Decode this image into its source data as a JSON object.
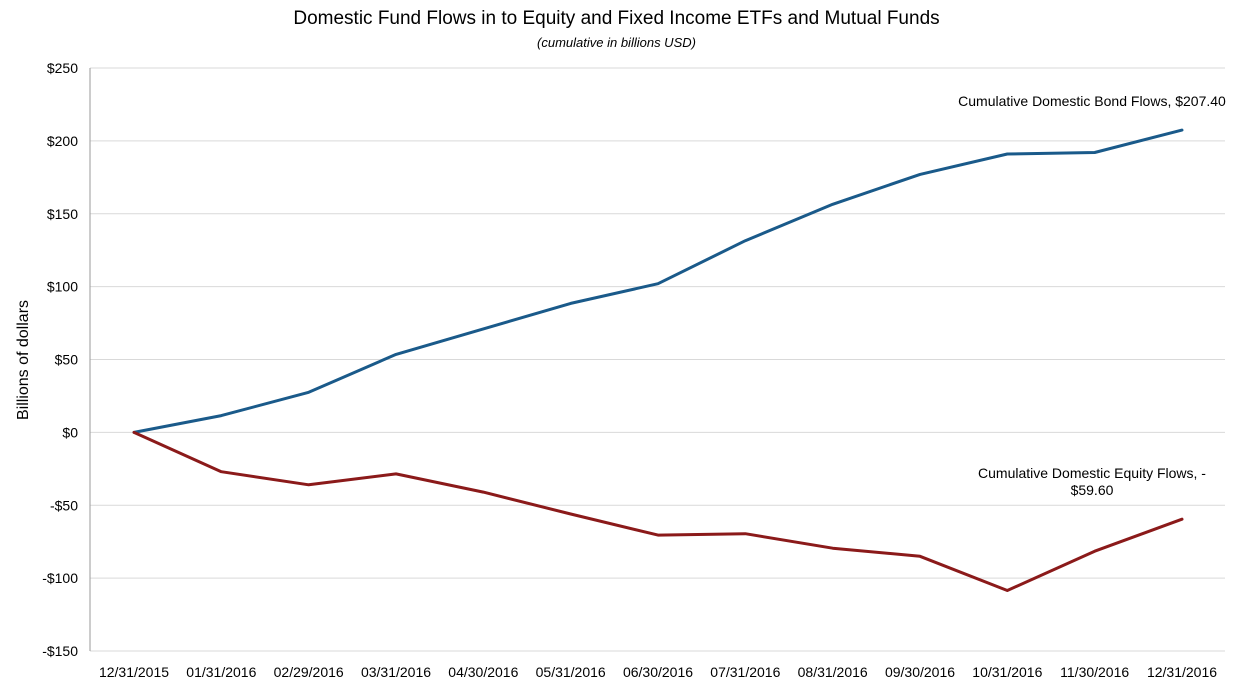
{
  "chart_data": {
    "type": "line",
    "title": "Domestic Fund Flows in to Equity and Fixed Income ETFs and Mutual Funds",
    "subtitle": "(cumulative in billions USD)",
    "xlabel": "",
    "ylabel": "Billions of dollars",
    "ylim": [
      -150,
      250
    ],
    "ytick_values": [
      -150,
      -100,
      -50,
      0,
      50,
      100,
      150,
      200,
      250
    ],
    "ytick_labels": [
      "-$150",
      "-$100",
      "-$50",
      "$0",
      "$50",
      "$100",
      "$150",
      "$200",
      "$250"
    ],
    "categories": [
      "12/31/2015",
      "01/31/2016",
      "02/29/2016",
      "03/31/2016",
      "04/30/2016",
      "05/31/2016",
      "06/30/2016",
      "07/31/2016",
      "08/31/2016",
      "09/30/2016",
      "10/31/2016",
      "11/30/2016",
      "12/31/2016"
    ],
    "grid": true,
    "legend": "none",
    "series": [
      {
        "color": "#1a5a8a",
        "values": [
          0,
          11.5,
          27.5,
          53.5,
          71,
          88.5,
          102,
          131.5,
          156.5,
          177,
          191,
          192,
          207.4
        ]
      },
      {
        "color": "#8b1a1a",
        "values": [
          0,
          -27,
          -36,
          -28.5,
          -41,
          -56,
          -70.5,
          -69.5,
          -79.5,
          -85,
          -108.5,
          -81.5,
          -59.6
        ]
      }
    ],
    "annotations": [
      {
        "series": 0,
        "lines": [
          "Cumulative Domestic Bond Flows, $207.40"
        ]
      },
      {
        "series": 1,
        "lines": [
          "Cumulative Domestic Equity Flows, -",
          "$59.60"
        ]
      }
    ]
  }
}
